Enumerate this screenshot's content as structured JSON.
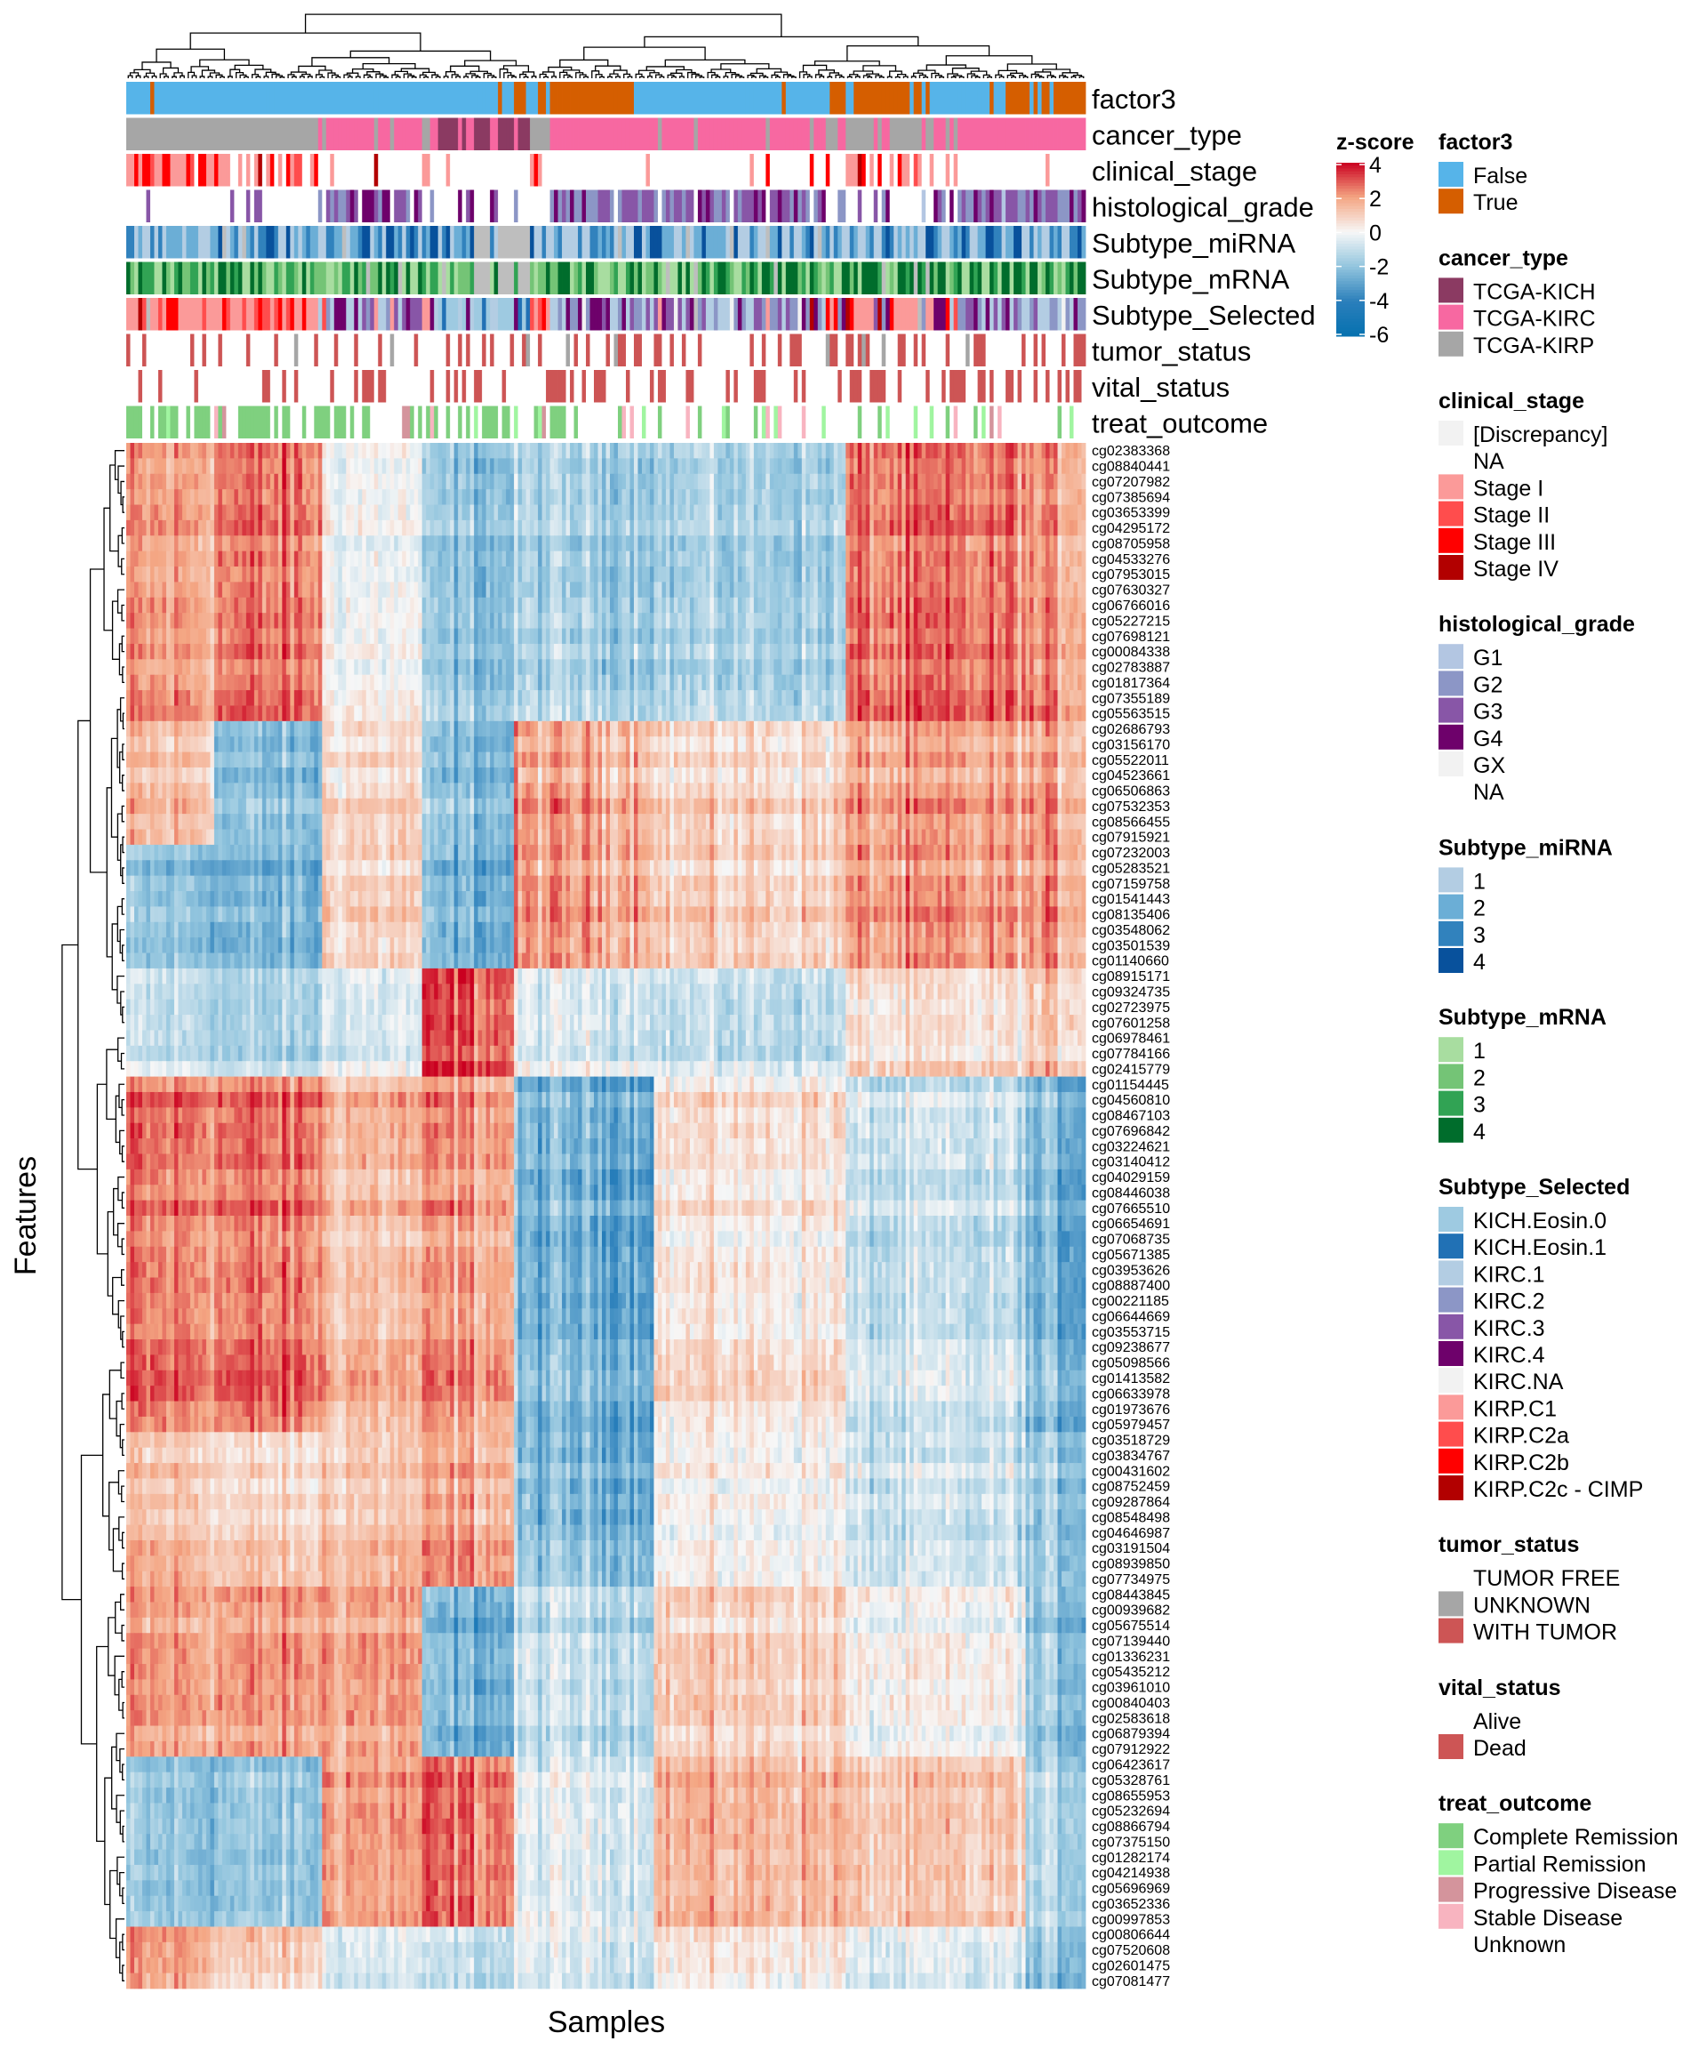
{
  "chart_data": {
    "type": "heatmap",
    "xlabel": "Samples",
    "ylabel": "Features",
    "color_scale": {
      "title": "z-score",
      "range": [
        -6,
        4
      ],
      "ticks": [
        "4",
        "2",
        "0",
        "-2",
        "-4",
        "-6"
      ],
      "tick_values": [
        4,
        2,
        0,
        -2,
        -4,
        -6
      ],
      "stops": [
        {
          "value": -6,
          "color": "#0571B0"
        },
        {
          "value": -4,
          "color": "#2B7FBB"
        },
        {
          "value": -2,
          "color": "#92C5DE"
        },
        {
          "value": 0,
          "color": "#F7F7F7"
        },
        {
          "value": 2,
          "color": "#F4A582"
        },
        {
          "value": 4,
          "color": "#CA0020"
        }
      ]
    },
    "row_labels": [
      "cg02383368",
      "cg08840441",
      "cg07207982",
      "cg07385694",
      "cg03653399",
      "cg04295172",
      "cg08705958",
      "cg04533276",
      "cg07953015",
      "cg07630327",
      "cg06766016",
      "cg05227215",
      "cg07698121",
      "cg00084338",
      "cg02783887",
      "cg01817364",
      "cg07355189",
      "cg05563515",
      "cg02686793",
      "cg03156170",
      "cg05522011",
      "cg04523661",
      "cg06506863",
      "cg07532353",
      "cg08566455",
      "cg07915921",
      "cg07232003",
      "cg05283521",
      "cg07159758",
      "cg01541443",
      "cg08135406",
      "cg03548062",
      "cg03501539",
      "cg01140660",
      "cg08915171",
      "cg09324735",
      "cg02723975",
      "cg07601258",
      "cg06978461",
      "cg07784166",
      "cg02415779",
      "cg01154445",
      "cg04560810",
      "cg08467103",
      "cg07696842",
      "cg03224621",
      "cg03140412",
      "cg04029159",
      "cg08446038",
      "cg07665510",
      "cg06654691",
      "cg07068735",
      "cg05671385",
      "cg03953626",
      "cg08887400",
      "cg00221185",
      "cg06644669",
      "cg03553715",
      "cg09238677",
      "cg05098566",
      "cg01413582",
      "cg06633978",
      "cg01973676",
      "cg05979457",
      "cg03518729",
      "cg03834767",
      "cg00431602",
      "cg08752459",
      "cg09287864",
      "cg08548498",
      "cg04646987",
      "cg03191504",
      "cg08939850",
      "cg07734975",
      "cg08443845",
      "cg00939682",
      "cg05675514",
      "cg07139440",
      "cg01336231",
      "cg05435212",
      "cg03961010",
      "cg00840403",
      "cg02583618",
      "cg06879394",
      "cg07912922",
      "cg06423617",
      "cg05328761",
      "cg08655953",
      "cg05232694",
      "cg08866794",
      "cg07375150",
      "cg01282174",
      "cg04214938",
      "cg05696969",
      "cg03652336",
      "cg00997853",
      "cg00806644",
      "cg07520608",
      "cg02601475",
      "cg07081477"
    ],
    "row_cluster_sizes": [
      18,
      8,
      8,
      7,
      23,
      6,
      4,
      11,
      11,
      4
    ],
    "column_cluster_fraction_bounds": [
      0,
      0.09,
      0.204,
      0.31,
      0.405,
      0.548,
      0.751,
      0.938,
      1
    ],
    "block_means": [
      [
        2,
        2.5,
        0,
        -2,
        -1.5,
        -1.5,
        2.5,
        2
      ],
      [
        1.5,
        -2,
        1,
        -2,
        2,
        1,
        2,
        2
      ],
      [
        -2,
        -2.5,
        1,
        -2.5,
        2,
        1,
        2,
        2
      ],
      [
        -1,
        -1.5,
        -0.5,
        3,
        -0.5,
        -1,
        0.5,
        1
      ],
      [
        2.5,
        2.5,
        1.5,
        2,
        -2.5,
        0.5,
        -1,
        -2.5
      ],
      [
        1,
        0.5,
        1,
        1.5,
        -2.5,
        0,
        -1,
        -2
      ],
      [
        1.5,
        1,
        1.5,
        2,
        -2,
        0,
        -1,
        -2
      ],
      [
        2,
        2,
        2,
        -2.5,
        -1,
        1,
        0,
        -2
      ],
      [
        -2,
        -2,
        2,
        2.5,
        -0.5,
        1.5,
        1,
        -1.5
      ],
      [
        2,
        1,
        -0.5,
        -1,
        -0.5,
        0.5,
        -0.5,
        -2
      ]
    ],
    "annotation_tracks": [
      "factor3",
      "cancer_type",
      "clinical_stage",
      "histological_grade",
      "Subtype_miRNA",
      "Subtype_mRNA",
      "Subtype_Selected",
      "tumor_status",
      "vital_status",
      "treat_outcome"
    ],
    "missing_color": "#BEBEBE",
    "legends": [
      {
        "title": "factor3",
        "items": [
          {
            "label": "False",
            "color": "#56B4E9"
          },
          {
            "label": "True",
            "color": "#D55E00"
          }
        ]
      },
      {
        "title": "cancer_type",
        "items": [
          {
            "label": "TCGA-KICH",
            "color": "#8B3A62"
          },
          {
            "label": "TCGA-KIRC",
            "color": "#F768A1"
          },
          {
            "label": "TCGA-KIRP",
            "color": "#A6A6A6"
          }
        ]
      },
      {
        "title": "clinical_stage",
        "items": [
          {
            "label": "[Discrepancy]",
            "color": "#F2F2F2"
          },
          {
            "label": "NA",
            "color": ""
          },
          {
            "label": "Stage I",
            "color": "#FB9A99"
          },
          {
            "label": "Stage II",
            "color": "#FF4D4D"
          },
          {
            "label": "Stage III",
            "color": "#FF0000"
          },
          {
            "label": "Stage IV",
            "color": "#B20000"
          }
        ]
      },
      {
        "title": "histological_grade",
        "items": [
          {
            "label": "G1",
            "color": "#B3C6E2"
          },
          {
            "label": "G2",
            "color": "#8C96C6"
          },
          {
            "label": "G3",
            "color": "#8856A7"
          },
          {
            "label": "G4",
            "color": "#6E016B"
          },
          {
            "label": "GX",
            "color": "#F2F2F2"
          },
          {
            "label": "NA",
            "color": ""
          }
        ]
      },
      {
        "title": "Subtype_miRNA",
        "items": [
          {
            "label": "1",
            "color": "#B3CDE3"
          },
          {
            "label": "2",
            "color": "#6BAED6"
          },
          {
            "label": "3",
            "color": "#3182BD"
          },
          {
            "label": "4",
            "color": "#08519C"
          }
        ]
      },
      {
        "title": "Subtype_mRNA",
        "items": [
          {
            "label": "1",
            "color": "#A8DDA0"
          },
          {
            "label": "2",
            "color": "#74C476"
          },
          {
            "label": "3",
            "color": "#31A354"
          },
          {
            "label": "4",
            "color": "#006D2C"
          }
        ]
      },
      {
        "title": "Subtype_Selected",
        "items": [
          {
            "label": "KICH.Eosin.0",
            "color": "#9ECAE1"
          },
          {
            "label": "KICH.Eosin.1",
            "color": "#2171B5"
          },
          {
            "label": "KIRC.1",
            "color": "#B3CDE3"
          },
          {
            "label": "KIRC.2",
            "color": "#8C96C6"
          },
          {
            "label": "KIRC.3",
            "color": "#8856A7"
          },
          {
            "label": "KIRC.4",
            "color": "#6E016B"
          },
          {
            "label": "KIRC.NA",
            "color": "#F2F2F2"
          },
          {
            "label": "KIRP.C1",
            "color": "#FB9A99"
          },
          {
            "label": "KIRP.C2a",
            "color": "#FF4D4D"
          },
          {
            "label": "KIRP.C2b",
            "color": "#FF0000"
          },
          {
            "label": "KIRP.C2c - CIMP",
            "color": "#B20000"
          }
        ]
      },
      {
        "title": "tumor_status",
        "items": [
          {
            "label": "TUMOR FREE",
            "color": ""
          },
          {
            "label": "UNKNOWN",
            "color": "#A6A6A6"
          },
          {
            "label": "WITH TUMOR",
            "color": "#CD5555"
          }
        ]
      },
      {
        "title": "vital_status",
        "items": [
          {
            "label": "Alive",
            "color": ""
          },
          {
            "label": "Dead",
            "color": "#CD5555"
          }
        ]
      },
      {
        "title": "treat_outcome",
        "items": [
          {
            "label": "Complete Remission",
            "color": "#7FD07F"
          },
          {
            "label": "Partial Remission",
            "color": "#A0F5A0"
          },
          {
            "label": "Progressive Disease",
            "color": "#D4949C"
          },
          {
            "label": "Stable Disease",
            "color": "#F8B4C0"
          },
          {
            "label": "Unknown",
            "color": ""
          }
        ]
      }
    ]
  }
}
